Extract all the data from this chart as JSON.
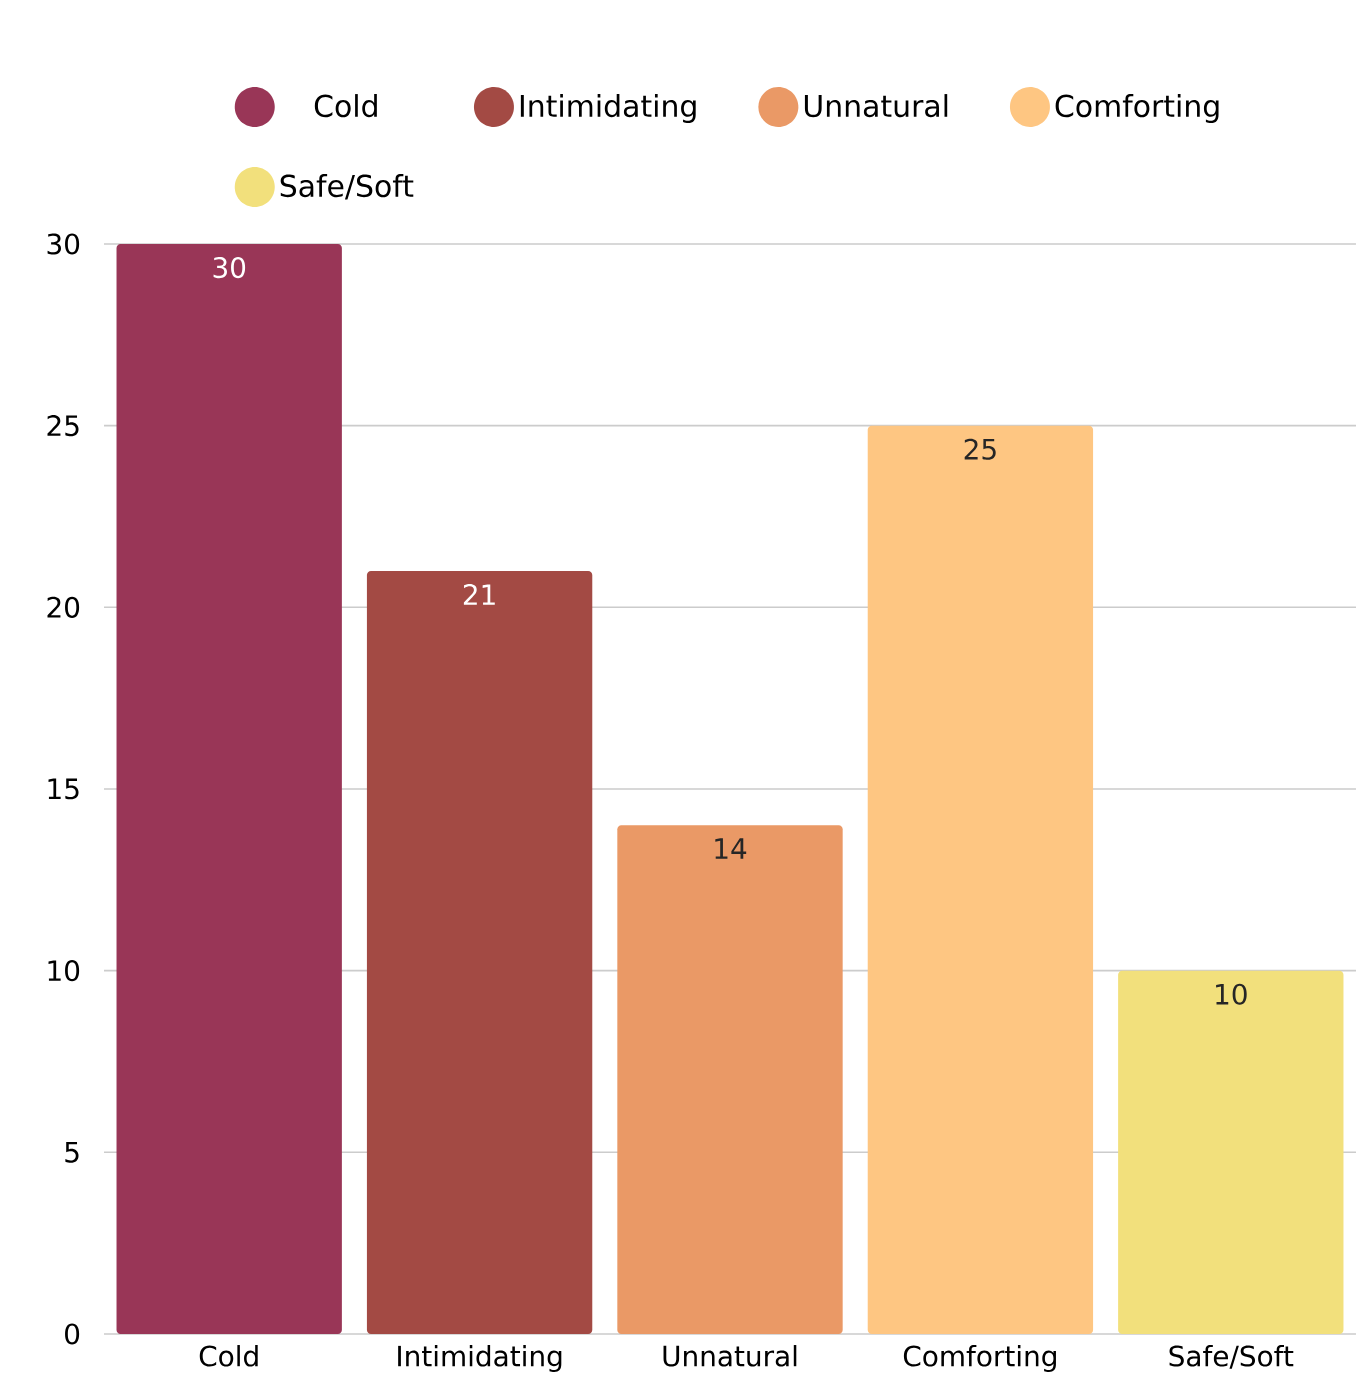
{
  "chart_data": {
    "type": "bar",
    "categories": [
      "Cold",
      "Intimidating",
      "Unnatural",
      "Comforting",
      "Safe/Soft"
    ],
    "series": [
      {
        "name": "Cold",
        "color": "#993657",
        "values": [
          30,
          null,
          null,
          null,
          null
        ]
      },
      {
        "name": "Intimidating",
        "color": "#a34a44",
        "values": [
          null,
          21,
          null,
          null,
          null
        ]
      },
      {
        "name": "Unnatural",
        "color": "#ea9966",
        "values": [
          null,
          null,
          14,
          null,
          null
        ]
      },
      {
        "name": "Comforting",
        "color": "#fec682",
        "values": [
          null,
          null,
          null,
          25,
          null
        ]
      },
      {
        "name": "Safe/Soft",
        "color": "#f2e07c",
        "values": [
          null,
          null,
          null,
          null,
          10
        ]
      }
    ],
    "ylim": [
      0,
      30
    ],
    "yticks": [
      0,
      5,
      10,
      15,
      20,
      25,
      30
    ],
    "grid": "y",
    "legend": "top",
    "data_labels": true
  }
}
